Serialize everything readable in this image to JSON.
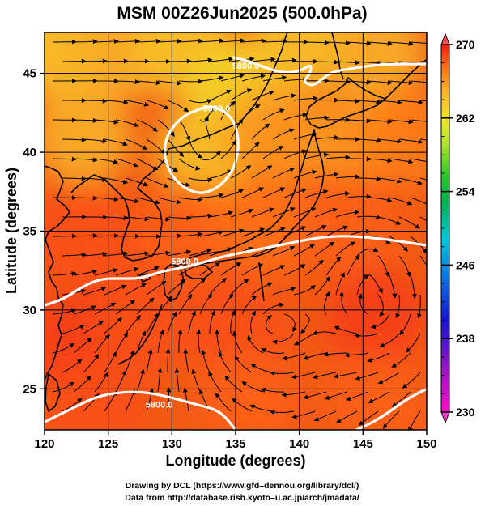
{
  "chart_data": {
    "type": "heatmap",
    "title": "MSM 00Z26Jun2025 (500.0hPa)",
    "xlabel": "Longitude (degrees)",
    "ylabel": "Latitude  (degrees)",
    "xlim": [
      120,
      150
    ],
    "ylim": [
      22.4,
      47.6
    ],
    "x_ticks": [
      120,
      125,
      130,
      135,
      140,
      145,
      150
    ],
    "y_ticks": [
      25,
      30,
      35,
      40,
      45
    ],
    "grid": true,
    "colorbar": {
      "min": 230,
      "max": 270,
      "ticks": [
        230,
        238,
        246,
        254,
        262,
        270
      ],
      "placement": "right"
    },
    "contour_labels": [
      {
        "text": "5800.0",
        "lon": 135.8,
        "lat": 45.3
      },
      {
        "text": "5800.0",
        "lon": 133.5,
        "lat": 42.6
      },
      {
        "text": "5800.0",
        "lon": 131.0,
        "lat": 32.9
      },
      {
        "text": "5800.0",
        "lon": 129.0,
        "lat": 23.8
      }
    ],
    "contours": [
      {
        "level": 5800,
        "points": [
          [
            134.8,
            46.0
          ],
          [
            136.0,
            45.8
          ],
          [
            137.5,
            45.3
          ],
          [
            139.0,
            45.0
          ],
          [
            140.2,
            45.2
          ],
          [
            141.0,
            45.6
          ],
          [
            140.8,
            44.9
          ],
          [
            140.3,
            44.5
          ],
          [
            141.0,
            44.2
          ],
          [
            141.6,
            44.5
          ],
          [
            142.5,
            45.1
          ],
          [
            144.0,
            45.3
          ],
          [
            146.5,
            45.6
          ],
          [
            150.0,
            45.6
          ]
        ]
      },
      {
        "level": 5800,
        "points": [
          [
            132.4,
            42.8
          ],
          [
            130.8,
            42.3
          ],
          [
            129.5,
            41.0
          ],
          [
            129.4,
            39.5
          ],
          [
            130.3,
            38.1
          ],
          [
            132.0,
            37.3
          ],
          [
            133.6,
            37.7
          ],
          [
            134.8,
            38.8
          ],
          [
            135.3,
            40.3
          ],
          [
            135.0,
            41.8
          ],
          [
            134.2,
            42.6
          ],
          [
            133.2,
            42.9
          ],
          [
            132.4,
            42.8
          ]
        ]
      },
      {
        "level": 5800,
        "points": [
          [
            120.0,
            30.3
          ],
          [
            121.5,
            30.7
          ],
          [
            123.0,
            31.5
          ],
          [
            124.5,
            32.0
          ],
          [
            126.0,
            32.0
          ],
          [
            127.5,
            32.0
          ],
          [
            129.0,
            32.4
          ],
          [
            130.2,
            32.6
          ],
          [
            132.0,
            32.9
          ],
          [
            134.0,
            33.4
          ],
          [
            136.5,
            33.8
          ],
          [
            139.0,
            34.2
          ],
          [
            141.5,
            34.6
          ],
          [
            143.5,
            34.7
          ],
          [
            145.5,
            34.6
          ],
          [
            147.5,
            34.4
          ],
          [
            150.0,
            34.1
          ]
        ]
      },
      {
        "level": 5800,
        "points": [
          [
            120.0,
            22.9
          ],
          [
            122.0,
            23.7
          ],
          [
            124.0,
            24.5
          ],
          [
            126.0,
            24.8
          ],
          [
            128.0,
            24.8
          ],
          [
            130.2,
            24.4
          ],
          [
            132.0,
            24.0
          ],
          [
            133.8,
            23.6
          ],
          [
            135.0,
            22.4
          ]
        ]
      },
      {
        "level": 5800,
        "points": [
          [
            144.5,
            22.4
          ],
          [
            146.3,
            23.1
          ],
          [
            148.5,
            24.4
          ],
          [
            150.0,
            25.0
          ]
        ]
      }
    ],
    "vortices": [
      {
        "lon": 132.6,
        "lat": 40.0,
        "sense": "cyclonic"
      },
      {
        "lon": 146.0,
        "lat": 30.0,
        "sense": "anticyclonic"
      },
      {
        "lon": 145.5,
        "lat": 33.5,
        "sense": "anticyclonic"
      },
      {
        "lon": 138.0,
        "lat": 29.0,
        "sense": "anticyclonic"
      }
    ],
    "temperature_field": [
      {
        "lon": 121,
        "lat": 46.5,
        "value": 264
      },
      {
        "lon": 126,
        "lat": 46.5,
        "value": 265
      },
      {
        "lon": 131,
        "lat": 46.5,
        "value": 264
      },
      {
        "lon": 135,
        "lat": 44.0,
        "value": 263
      },
      {
        "lon": 140,
        "lat": 47.0,
        "value": 264
      },
      {
        "lon": 146,
        "lat": 46.5,
        "value": 265
      },
      {
        "lon": 123,
        "lat": 41.0,
        "value": 265
      },
      {
        "lon": 132.6,
        "lat": 40.0,
        "value": 264
      },
      {
        "lon": 138,
        "lat": 41.0,
        "value": 266
      },
      {
        "lon": 144,
        "lat": 41.0,
        "value": 266
      },
      {
        "lon": 149,
        "lat": 41.0,
        "value": 267
      },
      {
        "lon": 122,
        "lat": 35.0,
        "value": 268.5
      },
      {
        "lon": 126,
        "lat": 33.5,
        "value": 268.5
      },
      {
        "lon": 131,
        "lat": 35.0,
        "value": 268
      },
      {
        "lon": 137,
        "lat": 35.5,
        "value": 267.5
      },
      {
        "lon": 144,
        "lat": 35.5,
        "value": 268
      },
      {
        "lon": 122,
        "lat": 28.0,
        "value": 269
      },
      {
        "lon": 128,
        "lat": 29.0,
        "value": 268.5
      },
      {
        "lon": 135,
        "lat": 29.0,
        "value": 268.5
      },
      {
        "lon": 146,
        "lat": 29.5,
        "value": 269
      },
      {
        "lon": 124,
        "lat": 23.5,
        "value": 268.5
      },
      {
        "lon": 136,
        "lat": 24.0,
        "value": 268
      },
      {
        "lon": 146,
        "lat": 24.0,
        "value": 268
      }
    ]
  },
  "credits": {
    "line1": "Drawing by DCL (https://www.gfd–dennou.org/library/dcl/)",
    "line2": "Data from http://database.rish.kyoto–u.ac.jp/arch/jmadata/"
  }
}
